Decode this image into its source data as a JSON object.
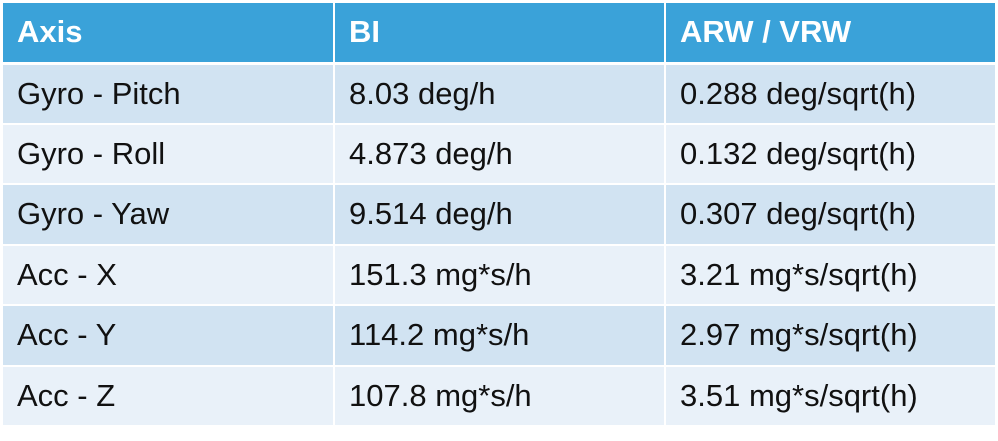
{
  "table": {
    "headers": [
      "Axis",
      "BI",
      "ARW / VRW"
    ],
    "rows": [
      [
        "Gyro - Pitch",
        "8.03 deg/h",
        "0.288 deg/sqrt(h)"
      ],
      [
        "Gyro - Roll",
        "4.873 deg/h",
        "0.132 deg/sqrt(h)"
      ],
      [
        "Gyro - Yaw",
        "9.514 deg/h",
        "0.307 deg/sqrt(h)"
      ],
      [
        "Acc - X",
        "151.3 mg*s/h",
        "3.21 mg*s/sqrt(h)"
      ],
      [
        "Acc - Y",
        "114.2 mg*s/h",
        "2.97 mg*s/sqrt(h)"
      ],
      [
        "Acc - Z",
        "107.8 mg*s/h",
        "3.51 mg*s/sqrt(h)"
      ]
    ]
  },
  "colors": {
    "header_bg": "#3aa2d9",
    "header_text": "#ffffff",
    "row_odd_bg": "#d1e3f2",
    "row_even_bg": "#e9f1f9"
  }
}
